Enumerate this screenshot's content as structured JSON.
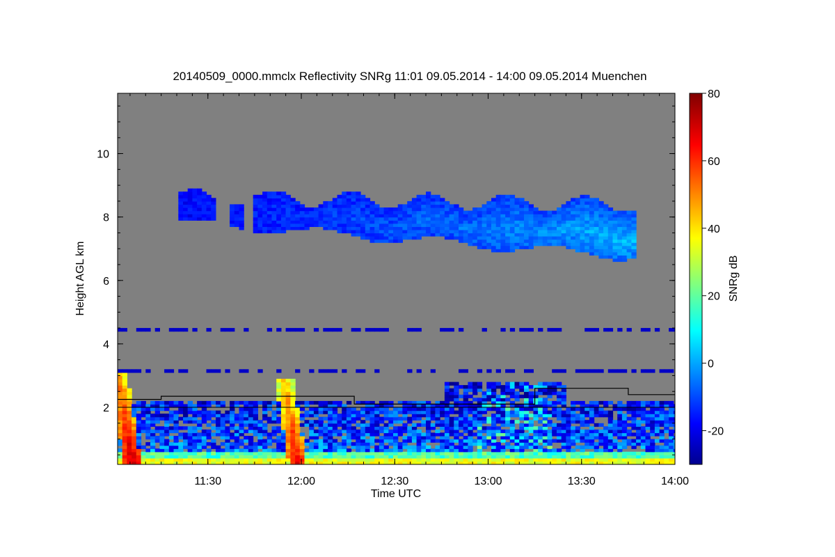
{
  "chart_data": {
    "type": "heatmap",
    "title": "20140509_0000.mmclx Reflectivity SNRg   11:01 09.05.2014 - 14:00 09.05.2014 Muenchen",
    "xlabel": "Time UTC",
    "ylabel": "Height AGL km",
    "xlim": [
      "11:01",
      "14:00"
    ],
    "ylim": [
      0.2,
      11.9
    ],
    "x_ticks": [
      "11:30",
      "12:00",
      "12:30",
      "13:00",
      "13:30",
      "14:00"
    ],
    "y_ticks": [
      2,
      4,
      6,
      8,
      10
    ],
    "colorbar": {
      "label": "SNRg dB",
      "range": [
        -30,
        80
      ],
      "ticks": [
        -20,
        0,
        20,
        40,
        60,
        80
      ],
      "colormap": "jet"
    },
    "background_color": "#808080",
    "features": [
      {
        "name": "upper cloud layer",
        "time_range": [
          "11:20",
          "13:46"
        ],
        "height_range_km": [
          6.5,
          8.9
        ],
        "snr_db": [
          -15,
          5
        ]
      },
      {
        "name": "boundary layer echoes",
        "time_range": [
          "11:01",
          "14:00"
        ],
        "height_range_km": [
          0.2,
          2.9
        ],
        "snr_db": [
          -25,
          40
        ]
      },
      {
        "name": "strong precipitation shaft",
        "time": "11:05",
        "height_range_km": [
          0.2,
          3.1
        ],
        "snr_db_max": 75
      },
      {
        "name": "strong precipitation shaft",
        "time": "11:58",
        "height_range_km": [
          0.2,
          2.9
        ],
        "snr_db_max": 70
      },
      {
        "name": "constant range artefact line",
        "height_km": 4.4
      },
      {
        "name": "constant range artefact line",
        "height_km": 3.15
      }
    ],
    "boundary_layer_line": {
      "name": "boundary layer height (black line)",
      "x": [
        "11:01",
        "11:15",
        "11:15",
        "12:17",
        "12:17",
        "13:15",
        "13:15",
        "13:45",
        "13:45",
        "14:00"
      ],
      "y": [
        2.25,
        2.25,
        2.35,
        2.35,
        2.1,
        2.1,
        2.6,
        2.6,
        2.4,
        2.4
      ]
    },
    "reference_line_km": 2.0
  }
}
